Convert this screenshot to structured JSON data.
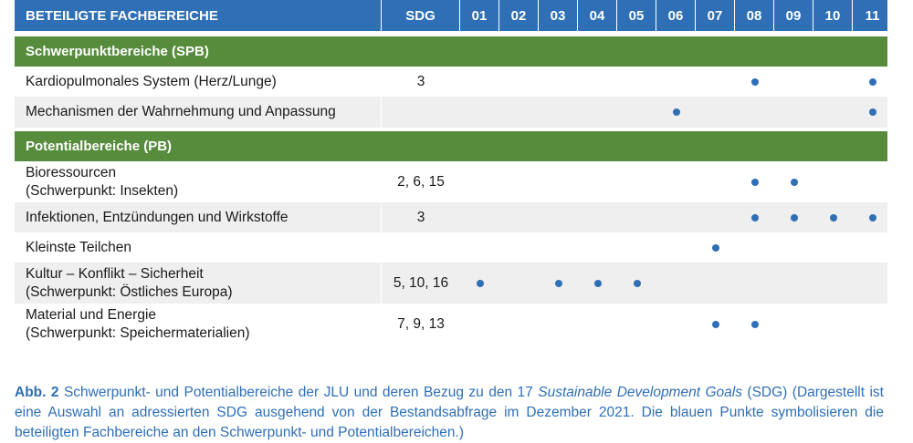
{
  "header": {
    "col_name": "BETEILIGTE FACHBEREICHE",
    "col_sdg": "SDG",
    "columns": [
      "01",
      "02",
      "03",
      "04",
      "05",
      "06",
      "07",
      "08",
      "09",
      "10",
      "11"
    ]
  },
  "sections": [
    {
      "title": "Schwerpunktbereiche (SPB)",
      "rows": [
        {
          "name_line1": "Kardiopulmonales System (Herz/Lunge)",
          "name_line2": "",
          "sdg": "3",
          "dots": [
            false,
            false,
            false,
            false,
            false,
            false,
            false,
            true,
            false,
            false,
            true
          ]
        },
        {
          "name_line1": "Mechanismen der Wahrnehmung und Anpassung",
          "name_line2": "",
          "sdg": "",
          "dots": [
            false,
            false,
            false,
            false,
            false,
            true,
            false,
            false,
            false,
            false,
            true
          ]
        }
      ]
    },
    {
      "title": "Potentialbereiche (PB)",
      "rows": [
        {
          "name_line1": "Bioressourcen",
          "name_line2": "(Schwerpunkt: Insekten)",
          "sdg": "2, 6, 15",
          "dots": [
            false,
            false,
            false,
            false,
            false,
            false,
            false,
            true,
            true,
            false,
            false
          ]
        },
        {
          "name_line1": "Infektionen, Entzündungen und Wirkstoffe",
          "name_line2": "",
          "sdg": "3",
          "dots": [
            false,
            false,
            false,
            false,
            false,
            false,
            false,
            true,
            true,
            true,
            true
          ]
        },
        {
          "name_line1": "Kleinste Teilchen",
          "name_line2": "",
          "sdg": "",
          "dots": [
            false,
            false,
            false,
            false,
            false,
            false,
            true,
            false,
            false,
            false,
            false
          ]
        },
        {
          "name_line1": "Kultur – Konflikt – Sicherheit",
          "name_line2": "(Schwerpunkt: Östliches Europa)",
          "sdg": "5, 10, 16",
          "dots": [
            true,
            false,
            true,
            true,
            true,
            false,
            false,
            false,
            false,
            false,
            false
          ]
        },
        {
          "name_line1": "Material und Energie",
          "name_line2": "(Schwerpunkt: Speichermaterialien)",
          "sdg": "7, 9, 13",
          "dots": [
            false,
            false,
            false,
            false,
            false,
            false,
            true,
            true,
            false,
            false,
            false
          ]
        }
      ]
    }
  ],
  "caption": {
    "label": "Abb.",
    "number": "2",
    "text_before": "Schwerpunkt- und Potentialbereiche der JLU und deren Bezug zu den 17",
    "italic": "Sustainable Development Goals",
    "text_after": "(SDG) (Dargestellt ist eine Auswahl an adressierten SDG ausgehend von der Bestandsabfrage im Dezember 2021. Die blauen Punkte symbolisieren die beteiligten Fachbereiche an den Schwerpunkt- und Potentialbereichen.)"
  },
  "colors": {
    "header_blue": "#2f6fb6",
    "section_green": "#568c3b",
    "row_alt_gray": "#efefef",
    "dot_blue": "#2f6fb6"
  }
}
